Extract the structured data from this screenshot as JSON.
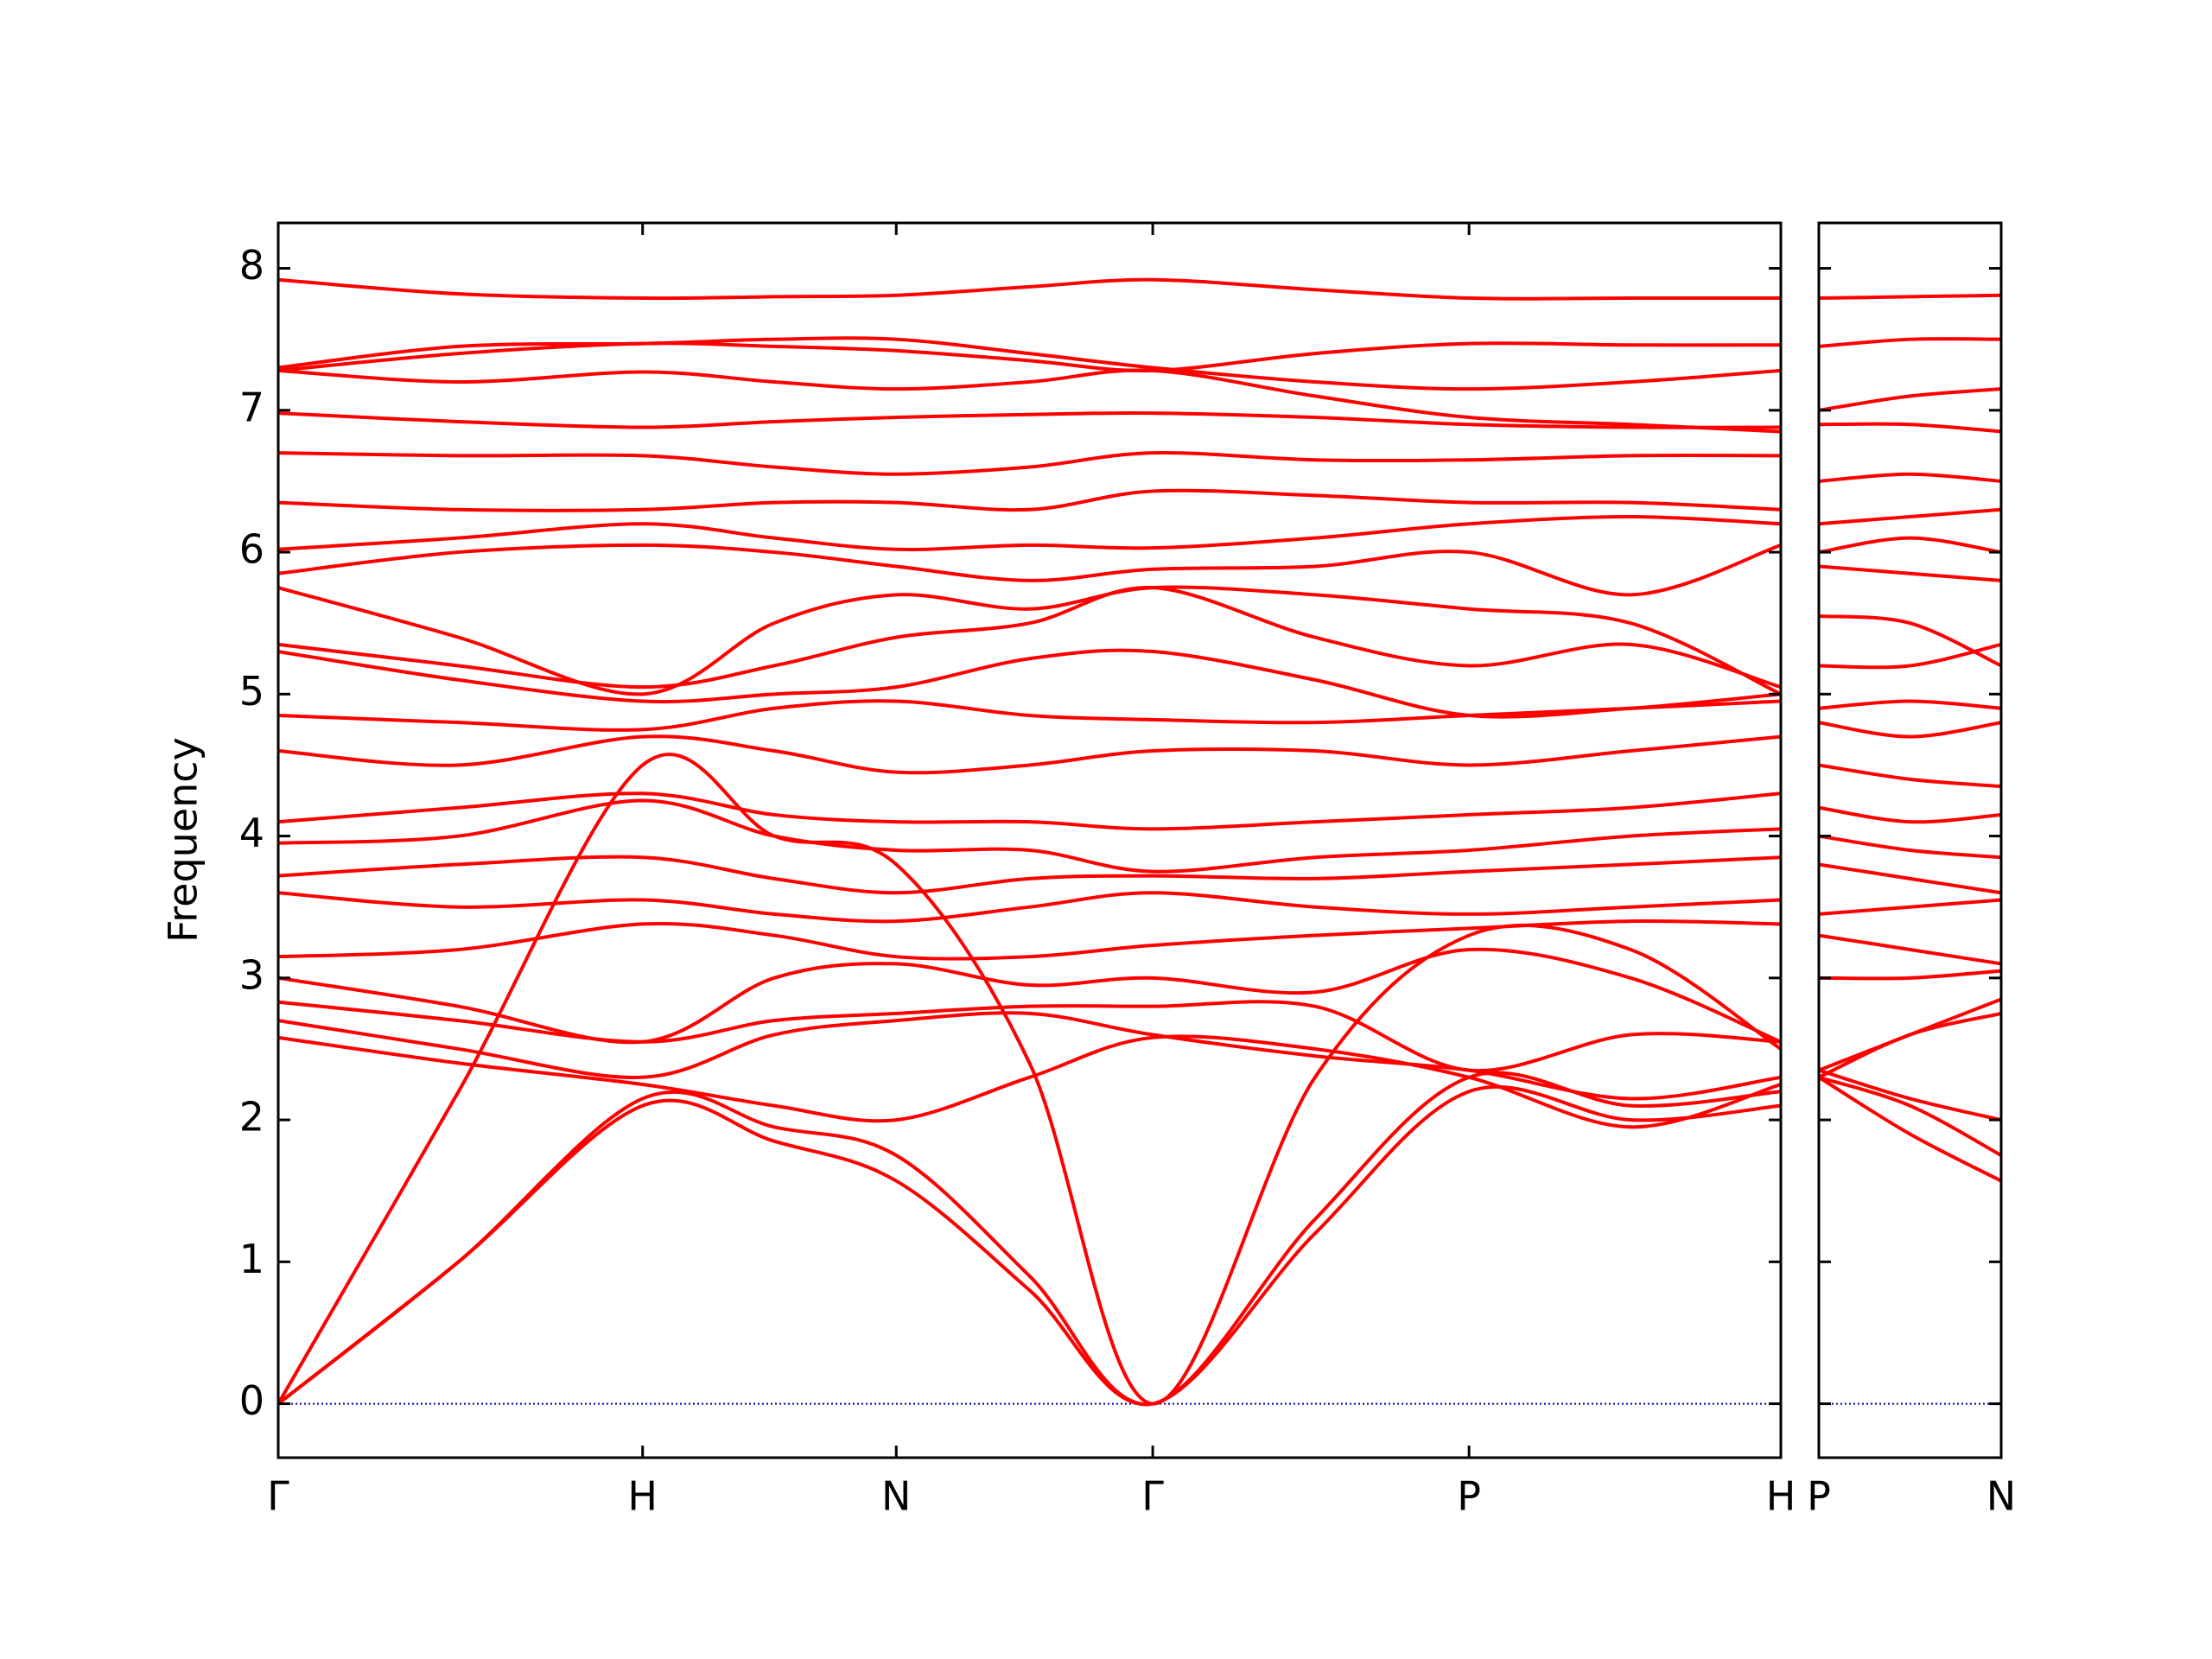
{
  "chart_data": [
    {
      "type": "line",
      "ylabel": "Frequency",
      "color": "#ff0000",
      "x": [
        0,
        0.12,
        0.2425,
        0.33,
        0.4113,
        0.5,
        0.582,
        0.69,
        0.7925,
        0.9,
        1.0
      ],
      "xlim": [
        0,
        1.0
      ],
      "xticks": [
        {
          "value": 0,
          "label": "Γ"
        },
        {
          "value": 0.2425,
          "label": "H"
        },
        {
          "value": 0.4113,
          "label": "N"
        },
        {
          "value": 0.582,
          "label": "Γ"
        },
        {
          "value": 0.7925,
          "label": "P"
        },
        {
          "value": 1.0,
          "label": "H"
        }
      ],
      "ylim": [
        -0.38,
        8.32
      ],
      "yticks": [
        0,
        1,
        2,
        3,
        4,
        5,
        6,
        7,
        8
      ],
      "reference_line": {
        "value": 0,
        "color": "#0000aa"
      },
      "series": [
        {
          "values": [
            0,
            1.0,
            2.1,
            1.85,
            1.57,
            0.8,
            0,
            1.2,
            2.2,
            2.0,
            2.1
          ]
        },
        {
          "values": [
            0,
            2.2,
            4.5,
            4.0,
            3.8,
            2.4,
            0,
            2.3,
            3.3,
            3.2,
            2.5
          ]
        },
        {
          "values": [
            0,
            1.0,
            2.15,
            1.95,
            1.75,
            0.9,
            0,
            1.3,
            2.3,
            2.1,
            2.2
          ]
        },
        {
          "values": [
            2.58,
            2.4,
            2.25,
            2.1,
            2.0,
            2.3,
            2.58,
            2.5,
            2.3,
            1.95,
            2.25
          ]
        },
        {
          "values": [
            2.7,
            2.5,
            2.3,
            2.6,
            2.7,
            2.75,
            2.6,
            2.45,
            2.35,
            2.15,
            2.3
          ]
        },
        {
          "values": [
            2.83,
            2.7,
            2.55,
            2.7,
            2.75,
            2.8,
            2.8,
            2.8,
            2.35,
            2.6,
            2.55
          ]
        },
        {
          "values": [
            3.0,
            2.8,
            2.55,
            3.0,
            3.1,
            2.95,
            3.0,
            2.9,
            3.2,
            3.0,
            2.55
          ]
        },
        {
          "values": [
            3.15,
            3.2,
            3.38,
            3.3,
            3.15,
            3.15,
            3.23,
            3.3,
            3.35,
            3.4,
            3.38
          ]
        },
        {
          "values": [
            3.6,
            3.5,
            3.55,
            3.45,
            3.4,
            3.5,
            3.6,
            3.5,
            3.45,
            3.5,
            3.55
          ]
        },
        {
          "values": [
            3.72,
            3.8,
            3.85,
            3.7,
            3.6,
            3.7,
            3.72,
            3.7,
            3.75,
            3.8,
            3.85
          ]
        },
        {
          "values": [
            3.95,
            4.0,
            4.25,
            4.0,
            3.9,
            3.9,
            3.75,
            3.85,
            3.9,
            4.0,
            4.05
          ]
        },
        {
          "values": [
            4.1,
            4.2,
            4.3,
            4.15,
            4.1,
            4.1,
            4.05,
            4.1,
            4.15,
            4.2,
            4.3
          ]
        },
        {
          "values": [
            4.6,
            4.5,
            4.7,
            4.6,
            4.45,
            4.5,
            4.6,
            4.6,
            4.5,
            4.6,
            4.7
          ]
        },
        {
          "values": [
            4.85,
            4.8,
            4.75,
            4.9,
            4.95,
            4.85,
            4.82,
            4.8,
            4.85,
            4.9,
            4.95
          ]
        },
        {
          "values": [
            5.3,
            5.1,
            4.95,
            5.0,
            5.05,
            5.25,
            5.3,
            5.1,
            4.85,
            4.9,
            5.0
          ]
        },
        {
          "values": [
            5.35,
            5.2,
            5.05,
            5.2,
            5.4,
            5.5,
            5.75,
            5.4,
            5.2,
            5.35,
            5.05
          ]
        },
        {
          "values": [
            5.75,
            5.4,
            5.0,
            5.5,
            5.7,
            5.6,
            5.75,
            5.7,
            5.6,
            5.5,
            5.0
          ]
        },
        {
          "values": [
            5.85,
            6.0,
            6.05,
            6.0,
            5.9,
            5.8,
            5.88,
            5.9,
            6.0,
            5.7,
            6.05
          ]
        },
        {
          "values": [
            6.02,
            6.1,
            6.2,
            6.1,
            6.02,
            6.05,
            6.03,
            6.1,
            6.2,
            6.25,
            6.2
          ]
        },
        {
          "values": [
            6.35,
            6.3,
            6.3,
            6.35,
            6.35,
            6.3,
            6.43,
            6.4,
            6.35,
            6.35,
            6.3
          ]
        },
        {
          "values": [
            6.7,
            6.68,
            6.68,
            6.6,
            6.55,
            6.6,
            6.7,
            6.65,
            6.65,
            6.68,
            6.68
          ]
        },
        {
          "values": [
            6.98,
            6.92,
            6.88,
            6.92,
            6.95,
            6.97,
            6.98,
            6.95,
            6.9,
            6.88,
            6.88
          ]
        },
        {
          "values": [
            7.28,
            7.2,
            7.27,
            7.2,
            7.15,
            7.2,
            7.28,
            7.1,
            6.95,
            6.9,
            6.85
          ]
        },
        {
          "values": [
            7.28,
            7.4,
            7.47,
            7.45,
            7.42,
            7.35,
            7.28,
            7.4,
            7.47,
            7.46,
            7.46
          ]
        },
        {
          "values": [
            7.3,
            7.45,
            7.47,
            7.5,
            7.5,
            7.4,
            7.3,
            7.2,
            7.15,
            7.2,
            7.28
          ]
        },
        {
          "values": [
            7.92,
            7.82,
            7.79,
            7.8,
            7.81,
            7.87,
            7.92,
            7.85,
            7.79,
            7.79,
            7.79
          ]
        }
      ]
    },
    {
      "type": "line",
      "color": "#ff0000",
      "sharey": true,
      "x": [
        0,
        0.06,
        0.12
      ],
      "xlim": [
        0,
        0.12
      ],
      "xticks": [
        {
          "value": 0,
          "label": "P"
        },
        {
          "value": 0.12,
          "label": "N"
        }
      ],
      "ylim": [
        -0.38,
        8.32
      ],
      "reference_line": {
        "value": 0,
        "color": "#0000aa"
      },
      "series": [
        {
          "values": [
            2.3,
            1.9,
            1.57
          ]
        },
        {
          "values": [
            2.3,
            2.1,
            1.75
          ]
        },
        {
          "values": [
            2.35,
            2.15,
            2.0
          ]
        },
        {
          "values": [
            2.3,
            2.6,
            2.75
          ]
        },
        {
          "values": [
            2.35,
            2.6,
            2.85
          ]
        },
        {
          "values": [
            3.0,
            3.0,
            3.05
          ]
        },
        {
          "values": [
            3.3,
            3.2,
            3.1
          ]
        },
        {
          "values": [
            3.45,
            3.5,
            3.55
          ]
        },
        {
          "values": [
            3.8,
            3.7,
            3.6
          ]
        },
        {
          "values": [
            4.0,
            3.9,
            3.85
          ]
        },
        {
          "values": [
            4.2,
            4.1,
            4.15
          ]
        },
        {
          "values": [
            4.5,
            4.4,
            4.35
          ]
        },
        {
          "values": [
            4.8,
            4.7,
            4.8
          ]
        },
        {
          "values": [
            4.9,
            4.95,
            4.9
          ]
        },
        {
          "values": [
            5.2,
            5.2,
            5.35
          ]
        },
        {
          "values": [
            5.55,
            5.5,
            5.2
          ]
        },
        {
          "values": [
            5.9,
            5.85,
            5.8
          ]
        },
        {
          "values": [
            6.0,
            6.1,
            6.0
          ]
        },
        {
          "values": [
            6.2,
            6.25,
            6.3
          ]
        },
        {
          "values": [
            6.5,
            6.55,
            6.5
          ]
        },
        {
          "values": [
            6.9,
            6.9,
            6.85
          ]
        },
        {
          "values": [
            7.0,
            7.1,
            7.15
          ]
        },
        {
          "values": [
            7.45,
            7.5,
            7.5
          ]
        },
        {
          "values": [
            7.79,
            7.8,
            7.81
          ]
        }
      ]
    }
  ]
}
